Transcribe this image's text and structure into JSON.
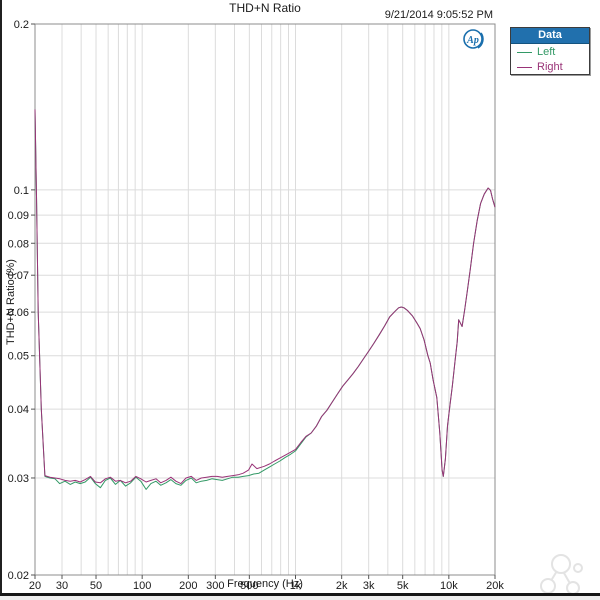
{
  "header": {
    "title": "THD+N Ratio",
    "timestamp": "9/21/2014 9:05:52 PM"
  },
  "legend": {
    "title": "Data",
    "entries": [
      {
        "label": "Left",
        "color": "#339966"
      },
      {
        "label": "Right",
        "color": "#993377"
      }
    ]
  },
  "logo": {
    "text": "Ap",
    "color": "#1a6fad"
  },
  "colors": {
    "grid": "#dcdcdc",
    "plot_border": "#8c8c8c",
    "tick_text": "#1a1a1a",
    "legend_header_bg": "#2170ad",
    "left_series": "#339966",
    "right_series": "#993377",
    "watermark": "#e3e3e3"
  },
  "chart_data": {
    "type": "line",
    "title": "THD+N Ratio",
    "xlabel": "Frequency (Hz)",
    "ylabel": "THD+N Ratio (%)",
    "x_scale": "log",
    "y_scale": "log",
    "xlim": [
      20,
      20000
    ],
    "ylim": [
      0.02,
      0.2
    ],
    "grid": true,
    "legend_position": "outside-top-right",
    "x_gridlines": [
      20,
      30,
      40,
      50,
      60,
      70,
      80,
      90,
      100,
      200,
      300,
      400,
      500,
      600,
      700,
      800,
      900,
      1000,
      2000,
      3000,
      4000,
      5000,
      6000,
      7000,
      8000,
      9000,
      10000,
      20000
    ],
    "x_ticks_labeled": [
      [
        20,
        "20"
      ],
      [
        30,
        "30"
      ],
      [
        50,
        "50"
      ],
      [
        100,
        "100"
      ],
      [
        200,
        "200"
      ],
      [
        300,
        "300"
      ],
      [
        500,
        "500"
      ],
      [
        1000,
        "1k"
      ],
      [
        2000,
        "2k"
      ],
      [
        3000,
        "3k"
      ],
      [
        5000,
        "5k"
      ],
      [
        10000,
        "10k"
      ],
      [
        20000,
        "20k"
      ]
    ],
    "y_gridlines": [
      0.02,
      0.03,
      0.04,
      0.05,
      0.06,
      0.07,
      0.08,
      0.09,
      0.1,
      0.2
    ],
    "y_ticks_labeled": [
      [
        0.02,
        "0.02"
      ],
      [
        0.03,
        "0.03"
      ],
      [
        0.04,
        "0.04"
      ],
      [
        0.05,
        "0.05"
      ],
      [
        0.06,
        "0.06"
      ],
      [
        0.07,
        "0.07"
      ],
      [
        0.08,
        "0.08"
      ],
      [
        0.09,
        "0.09"
      ],
      [
        0.1,
        "0.1"
      ],
      [
        0.2,
        "0.2"
      ]
    ],
    "series": [
      {
        "name": "Left",
        "color": "#339966",
        "points": [
          [
            20,
            0.14
          ],
          [
            20.5,
            0.095
          ],
          [
            21,
            0.06
          ],
          [
            22,
            0.04
          ],
          [
            23.2,
            0.0302
          ],
          [
            25,
            0.03
          ],
          [
            27,
            0.0299
          ],
          [
            29,
            0.0293
          ],
          [
            31.4,
            0.0296
          ],
          [
            34,
            0.0292
          ],
          [
            36.6,
            0.0295
          ],
          [
            39.4,
            0.0293
          ],
          [
            42.5,
            0.0295
          ],
          [
            46,
            0.0301
          ],
          [
            49.5,
            0.0293
          ],
          [
            53.4,
            0.0288
          ],
          [
            57.6,
            0.0297
          ],
          [
            62,
            0.03
          ],
          [
            67,
            0.0292
          ],
          [
            72,
            0.0297
          ],
          [
            78,
            0.029
          ],
          [
            84,
            0.0294
          ],
          [
            91,
            0.0301
          ],
          [
            98,
            0.0296
          ],
          [
            106,
            0.0286
          ],
          [
            114,
            0.0293
          ],
          [
            123,
            0.0296
          ],
          [
            132,
            0.0291
          ],
          [
            143,
            0.0294
          ],
          [
            154,
            0.0298
          ],
          [
            166,
            0.0293
          ],
          [
            179,
            0.0291
          ],
          [
            193,
            0.0297
          ],
          [
            209,
            0.03
          ],
          [
            225,
            0.0294
          ],
          [
            243,
            0.0296
          ],
          [
            263,
            0.0297
          ],
          [
            285,
            0.0299
          ],
          [
            308,
            0.0298
          ],
          [
            333,
            0.0297
          ],
          [
            360,
            0.0299
          ],
          [
            390,
            0.0301
          ],
          [
            422,
            0.0301
          ],
          [
            456,
            0.0302
          ],
          [
            494,
            0.0303
          ],
          [
            534,
            0.0305
          ],
          [
            578,
            0.0306
          ],
          [
            625,
            0.031
          ],
          [
            676,
            0.0314
          ],
          [
            731,
            0.0318
          ],
          [
            791,
            0.0322
          ],
          [
            856,
            0.0327
          ],
          [
            926,
            0.0331
          ],
          [
            1000,
            0.0336
          ],
          [
            1082,
            0.0346
          ],
          [
            1170,
            0.0356
          ],
          [
            1266,
            0.0362
          ],
          [
            1370,
            0.0373
          ],
          [
            1482,
            0.0388
          ],
          [
            1603,
            0.0398
          ],
          [
            1734,
            0.0412
          ],
          [
            1876,
            0.0426
          ],
          [
            2029,
            0.044
          ],
          [
            2195,
            0.0452
          ],
          [
            2375,
            0.0464
          ],
          [
            2569,
            0.0478
          ],
          [
            2779,
            0.0494
          ],
          [
            3006,
            0.051
          ],
          [
            3252,
            0.0527
          ],
          [
            3518,
            0.0546
          ],
          [
            3806,
            0.0566
          ],
          [
            4117,
            0.0588
          ],
          [
            4454,
            0.0602
          ],
          [
            4700,
            0.0611
          ],
          [
            4900,
            0.0613
          ],
          [
            5100,
            0.0611
          ],
          [
            5374,
            0.0604
          ],
          [
            5800,
            0.059
          ],
          [
            6200,
            0.0573
          ],
          [
            6500,
            0.056
          ],
          [
            6900,
            0.0534
          ],
          [
            7300,
            0.05
          ],
          [
            7560,
            0.0485
          ],
          [
            7900,
            0.0452
          ],
          [
            8350,
            0.042
          ],
          [
            8730,
            0.0362
          ],
          [
            9040,
            0.031
          ],
          [
            9200,
            0.0302
          ],
          [
            9500,
            0.0325
          ],
          [
            9800,
            0.0373
          ],
          [
            10200,
            0.041
          ],
          [
            10530,
            0.044
          ],
          [
            11000,
            0.0492
          ],
          [
            11330,
            0.053
          ],
          [
            11600,
            0.0581
          ],
          [
            12200,
            0.0565
          ],
          [
            12700,
            0.0608
          ],
          [
            13200,
            0.0655
          ],
          [
            13800,
            0.0718
          ],
          [
            14500,
            0.08
          ],
          [
            15300,
            0.088
          ],
          [
            16100,
            0.0945
          ],
          [
            17000,
            0.0982
          ],
          [
            18030,
            0.1008
          ],
          [
            18700,
            0.0998
          ],
          [
            19300,
            0.0962
          ],
          [
            20000,
            0.093
          ]
        ]
      },
      {
        "name": "Right",
        "color": "#993377",
        "points": [
          [
            20,
            0.14
          ],
          [
            20.5,
            0.095
          ],
          [
            21,
            0.06
          ],
          [
            22,
            0.04
          ],
          [
            23.2,
            0.0303
          ],
          [
            25,
            0.0301
          ],
          [
            27,
            0.03
          ],
          [
            29,
            0.0299
          ],
          [
            31.4,
            0.0297
          ],
          [
            34,
            0.0296
          ],
          [
            36.6,
            0.0297
          ],
          [
            39.4,
            0.0295
          ],
          [
            42.5,
            0.0298
          ],
          [
            46,
            0.0302
          ],
          [
            49.5,
            0.0295
          ],
          [
            53.4,
            0.0294
          ],
          [
            57.6,
            0.0299
          ],
          [
            62,
            0.0301
          ],
          [
            67,
            0.0296
          ],
          [
            72,
            0.0297
          ],
          [
            78,
            0.0294
          ],
          [
            84,
            0.0296
          ],
          [
            91,
            0.0302
          ],
          [
            98,
            0.0299
          ],
          [
            106,
            0.0295
          ],
          [
            114,
            0.0297
          ],
          [
            123,
            0.0299
          ],
          [
            132,
            0.0294
          ],
          [
            143,
            0.0297
          ],
          [
            154,
            0.0301
          ],
          [
            166,
            0.0296
          ],
          [
            179,
            0.0293
          ],
          [
            193,
            0.03
          ],
          [
            209,
            0.0302
          ],
          [
            225,
            0.0297
          ],
          [
            243,
            0.03
          ],
          [
            263,
            0.0301
          ],
          [
            285,
            0.0302
          ],
          [
            308,
            0.0302
          ],
          [
            333,
            0.0301
          ],
          [
            360,
            0.0302
          ],
          [
            390,
            0.0303
          ],
          [
            422,
            0.0304
          ],
          [
            456,
            0.0306
          ],
          [
            494,
            0.031
          ],
          [
            520,
            0.0318
          ],
          [
            560,
            0.0312
          ],
          [
            625,
            0.0315
          ],
          [
            676,
            0.0318
          ],
          [
            731,
            0.0322
          ],
          [
            791,
            0.0326
          ],
          [
            856,
            0.033
          ],
          [
            926,
            0.0334
          ],
          [
            1000,
            0.0338
          ],
          [
            1082,
            0.0348
          ],
          [
            1170,
            0.0357
          ],
          [
            1266,
            0.0362
          ],
          [
            1370,
            0.0373
          ],
          [
            1482,
            0.0388
          ],
          [
            1603,
            0.0398
          ],
          [
            1734,
            0.0412
          ],
          [
            1876,
            0.0426
          ],
          [
            2029,
            0.044
          ],
          [
            2195,
            0.0452
          ],
          [
            2375,
            0.0464
          ],
          [
            2569,
            0.0478
          ],
          [
            2779,
            0.0494
          ],
          [
            3006,
            0.051
          ],
          [
            3252,
            0.0527
          ],
          [
            3518,
            0.0546
          ],
          [
            3806,
            0.0566
          ],
          [
            4117,
            0.0588
          ],
          [
            4454,
            0.0602
          ],
          [
            4700,
            0.0611
          ],
          [
            4900,
            0.0613
          ],
          [
            5100,
            0.0611
          ],
          [
            5374,
            0.0604
          ],
          [
            5800,
            0.059
          ],
          [
            6200,
            0.0573
          ],
          [
            6500,
            0.056
          ],
          [
            6900,
            0.0534
          ],
          [
            7300,
            0.05
          ],
          [
            7560,
            0.0485
          ],
          [
            7900,
            0.0452
          ],
          [
            8350,
            0.042
          ],
          [
            8730,
            0.0362
          ],
          [
            9040,
            0.031
          ],
          [
            9200,
            0.0302
          ],
          [
            9500,
            0.0325
          ],
          [
            9800,
            0.0373
          ],
          [
            10200,
            0.041
          ],
          [
            10530,
            0.044
          ],
          [
            11000,
            0.0492
          ],
          [
            11330,
            0.053
          ],
          [
            11600,
            0.0581
          ],
          [
            12200,
            0.0565
          ],
          [
            12700,
            0.0608
          ],
          [
            13200,
            0.0655
          ],
          [
            13800,
            0.0718
          ],
          [
            14500,
            0.08
          ],
          [
            15300,
            0.088
          ],
          [
            16100,
            0.0945
          ],
          [
            17000,
            0.0982
          ],
          [
            18030,
            0.1008
          ],
          [
            18700,
            0.0998
          ],
          [
            19300,
            0.0962
          ],
          [
            20000,
            0.093
          ]
        ]
      }
    ]
  }
}
